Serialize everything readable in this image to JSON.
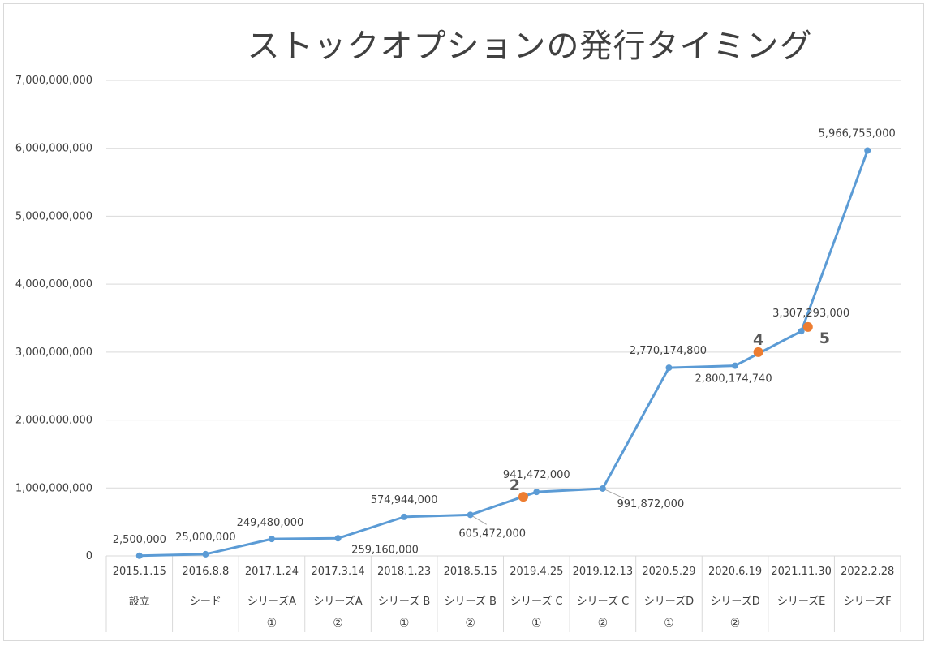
{
  "chart_data": {
    "type": "line",
    "title": "ストックオプションの発行タイミング",
    "ylim": [
      0,
      7000000000
    ],
    "yticks": [
      0,
      1000000000,
      2000000000,
      3000000000,
      4000000000,
      5000000000,
      6000000000,
      7000000000
    ],
    "ytick_labels": [
      "0",
      "1,000,000,000",
      "2,000,000,000",
      "3,000,000,000",
      "4,000,000,000",
      "5,000,000,000",
      "6,000,000,000",
      "7,000,000,000"
    ],
    "grid": true,
    "line_color": "#5b9bd5",
    "highlight_color": "#ed7d31",
    "categories": [
      {
        "date": "2015.1.15",
        "name": "設立",
        "round": ""
      },
      {
        "date": "2016.8.8",
        "name": "シード",
        "round": ""
      },
      {
        "date": "2017.1.24",
        "name": "シリーズA",
        "round": "①"
      },
      {
        "date": "2017.3.14",
        "name": "シリーズA",
        "round": "②"
      },
      {
        "date": "2018.1.23",
        "name": "シリーズ B",
        "round": "①"
      },
      {
        "date": "2018.5.15",
        "name": "シリーズ B",
        "round": "②"
      },
      {
        "date": "2019.4.25",
        "name": "シリーズ C",
        "round": "①"
      },
      {
        "date": "2019.12.13",
        "name": "シリーズ C",
        "round": "②"
      },
      {
        "date": "2020.5.29",
        "name": "シリーズD",
        "round": "①"
      },
      {
        "date": "2020.6.19",
        "name": "シリーズD",
        "round": "②"
      },
      {
        "date": "2021.11.30",
        "name": "シリーズE",
        "round": ""
      },
      {
        "date": "2022.2.28",
        "name": "シリーズF",
        "round": ""
      }
    ],
    "series": [
      {
        "values": [
          2500000,
          25000000,
          249480000,
          259160000,
          574944000,
          605472000,
          941472000,
          991872000,
          2770174800,
          2800174740,
          3307293000,
          5966755000
        ],
        "labels": [
          "2,500,000",
          "25,000,000",
          "249,480,000",
          "259,160,000",
          "574,944,000",
          "605,472,000",
          "941,472,000",
          "991,872,000",
          "2,770,174,800",
          "2,800,174,740",
          "3,307,293,000",
          "5,966,755,000"
        ]
      }
    ],
    "highlights": [
      {
        "label": "2",
        "x_position": 5.8,
        "value": 870000000
      },
      {
        "label": "4",
        "x_position": 9.35,
        "value": 3000000000
      },
      {
        "label": "5",
        "x_position": 10.1,
        "value": 3370000000
      }
    ]
  }
}
